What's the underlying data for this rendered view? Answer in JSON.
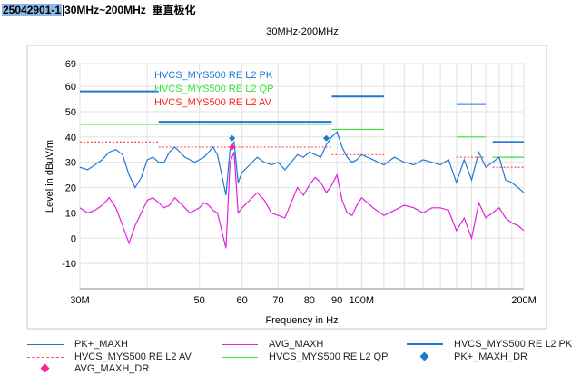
{
  "header": {
    "id": "25042901-1",
    "rest": "30MHz~200MHz_垂直极化"
  },
  "chart_data": {
    "type": "line",
    "title": "30MHz-200MHz",
    "xlabel": "Frequency in Hz",
    "ylabel": "Level in dBuV/m",
    "xscale": "log",
    "xlim": [
      30,
      200
    ],
    "ylim": [
      -20,
      69
    ],
    "grid": true,
    "xticks": [
      {
        "value": 30,
        "label": "30M"
      },
      {
        "value": 40,
        "label": ""
      },
      {
        "value": 50,
        "label": "50"
      },
      {
        "value": 60,
        "label": "60"
      },
      {
        "value": 70,
        "label": "70"
      },
      {
        "value": 80,
        "label": "80"
      },
      {
        "value": 90,
        "label": "90"
      },
      {
        "value": 100,
        "label": "100M"
      },
      {
        "value": 200,
        "label": "200M"
      }
    ],
    "yticks": [
      69,
      60,
      50,
      40,
      30,
      20,
      10,
      0,
      -10
    ],
    "annotations": [
      {
        "text": "HVCS_MYS500 RE L2 PK",
        "color": "#1f78d4"
      },
      {
        "text": "HVCS_MYS500 RE L2 QP",
        "color": "#39e639"
      },
      {
        "text": "HVCS_MYS500 RE L2 AV",
        "color": "#ff2020"
      }
    ],
    "limits": [
      {
        "name": "HVCS_MYS500 RE L2 PK",
        "color": "#1f78d4",
        "segments": [
          [
            30,
            42,
            58
          ],
          [
            42,
            88,
            46
          ],
          [
            88,
            110,
            56
          ],
          [
            150,
            170,
            53
          ],
          [
            175,
            200,
            38
          ]
        ]
      },
      {
        "name": "HVCS_MYS500 RE L2 QP",
        "color": "#39e639",
        "segments": [
          [
            30,
            88,
            45
          ],
          [
            88,
            110,
            43
          ],
          [
            150,
            170,
            40
          ],
          [
            175,
            200,
            32
          ]
        ]
      },
      {
        "name": "HVCS_MYS500 RE L2 AV",
        "color": "#ff5050",
        "segments": [
          [
            30,
            42,
            38
          ],
          [
            42,
            88,
            36
          ],
          [
            88,
            110,
            33
          ],
          [
            150,
            170,
            32
          ],
          [
            175,
            200,
            28
          ]
        ]
      }
    ],
    "series": [
      {
        "name": "PK+_MAXH",
        "color": "#1f78d4",
        "x": [
          30,
          31,
          32,
          33,
          34,
          35,
          36,
          37,
          38,
          39,
          40,
          41,
          42,
          43,
          44,
          45,
          46,
          47,
          48,
          49,
          50,
          51,
          52,
          53,
          54,
          55,
          56,
          57,
          58,
          59,
          60,
          62,
          64,
          66,
          68,
          70,
          72,
          74,
          76,
          78,
          80,
          82,
          84,
          86,
          88,
          90,
          92,
          94,
          96,
          98,
          100,
          105,
          110,
          115,
          120,
          125,
          130,
          135,
          140,
          145,
          150,
          155,
          160,
          165,
          170,
          175,
          180,
          185,
          190,
          195,
          200
        ],
        "y": [
          28,
          27,
          29,
          31,
          34,
          35,
          33,
          25,
          20,
          24,
          31,
          32,
          30,
          30,
          34,
          36,
          34,
          32,
          31,
          30,
          31,
          32,
          34,
          36,
          33,
          25,
          17,
          35,
          38,
          22,
          26,
          29,
          32,
          30,
          29,
          30,
          27,
          30,
          33,
          32,
          34,
          33,
          32,
          37,
          40,
          42,
          36,
          32,
          30,
          31,
          33,
          31,
          29,
          32,
          30,
          29,
          31,
          30,
          29,
          31,
          22,
          31,
          23,
          34,
          28,
          30,
          32,
          23,
          22,
          20,
          18
        ]
      },
      {
        "name": "AVG_MAXH",
        "color": "#e020e0",
        "x": [
          30,
          31,
          32,
          33,
          34,
          35,
          36,
          37,
          38,
          39,
          40,
          41,
          42,
          43,
          44,
          45,
          46,
          47,
          48,
          49,
          50,
          51,
          52,
          53,
          54,
          55,
          56,
          57,
          58,
          59,
          60,
          62,
          64,
          66,
          68,
          70,
          72,
          74,
          76,
          78,
          80,
          82,
          84,
          86,
          88,
          90,
          92,
          94,
          96,
          98,
          100,
          105,
          110,
          115,
          120,
          125,
          130,
          135,
          140,
          145,
          150,
          155,
          160,
          165,
          170,
          175,
          180,
          185,
          190,
          195,
          200
        ],
        "y": [
          12,
          10,
          11,
          13,
          16,
          12,
          5,
          -2,
          5,
          10,
          15,
          16,
          14,
          12,
          13,
          16,
          14,
          12,
          10,
          11,
          12,
          14,
          13,
          11,
          10,
          3,
          -4,
          30,
          34,
          10,
          12,
          15,
          18,
          15,
          10,
          9,
          8,
          14,
          20,
          17,
          21,
          24,
          22,
          18,
          21,
          25,
          15,
          10,
          9,
          13,
          16,
          12,
          9,
          11,
          13,
          12,
          10,
          12,
          12,
          11,
          3,
          8,
          0,
          14,
          8,
          10,
          12,
          8,
          6,
          5,
          3
        ]
      }
    ],
    "markers": [
      {
        "name": "PK+_MAXH_DR",
        "color": "#1f78d4",
        "shape": "diamond",
        "points": [
          [
            57.5,
            39.5
          ],
          [
            86,
            39.5
          ]
        ]
      },
      {
        "name": "AVG_MAXH_DR",
        "color": "#ff2090",
        "shape": "diamond",
        "points": [
          [
            57.5,
            36
          ]
        ]
      }
    ],
    "legend": [
      {
        "label": "PK+_MAXH",
        "color": "#1f78d4",
        "style": "line"
      },
      {
        "label": "AVG_MAXH",
        "color": "#e020e0",
        "style": "line"
      },
      {
        "label": "HVCS_MYS500 RE L2 PK",
        "color": "#1f78d4",
        "style": "thick"
      },
      {
        "label": "HVCS_MYS500 RE L2 AV",
        "color": "#ff5050",
        "style": "dash"
      },
      {
        "label": "HVCS_MYS500 RE L2 QP",
        "color": "#39e639",
        "style": "line"
      },
      {
        "label": "PK+_MAXH_DR",
        "color": "#1f78d4",
        "style": "diamond"
      },
      {
        "label": "AVG_MAXH_DR",
        "color": "#ff2090",
        "style": "diamond"
      }
    ]
  }
}
